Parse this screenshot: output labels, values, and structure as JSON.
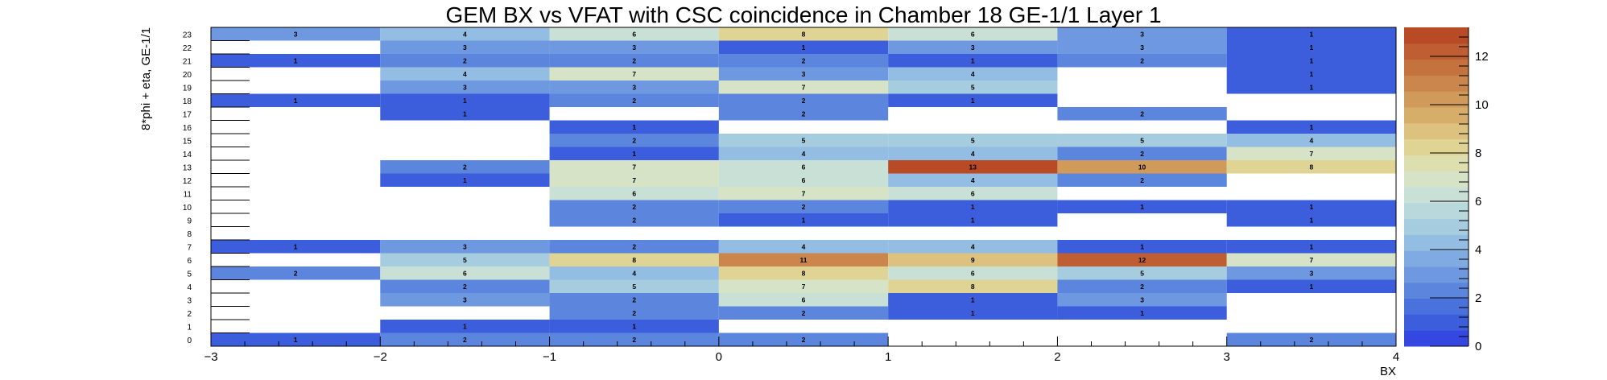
{
  "chart_data": {
    "type": "heatmap",
    "title": "GEM BX vs VFAT with CSC coincidence in Chamber 18 GE-1/1 Layer 1",
    "xlabel": "BX",
    "ylabel": "8*phi + eta, GE-1/1",
    "xlim": [
      -3,
      4
    ],
    "ylim": [
      0,
      24
    ],
    "zlim": [
      0,
      13.2
    ],
    "x_ticks": [
      -3,
      -2,
      -1,
      0,
      1,
      2,
      3,
      4
    ],
    "x_tick_labels": [
      "−3",
      "−2",
      "−1",
      "0",
      "1",
      "2",
      "3",
      "4"
    ],
    "y_ticks": [
      0,
      1,
      2,
      3,
      4,
      5,
      6,
      7,
      8,
      9,
      10,
      11,
      12,
      13,
      14,
      15,
      16,
      17,
      18,
      19,
      20,
      21,
      22,
      23
    ],
    "z_ticks": [
      0,
      2,
      4,
      6,
      8,
      10,
      12
    ],
    "x_bin_edges": [
      -3,
      -2,
      -1,
      0,
      1,
      2,
      3,
      4
    ],
    "cells": [
      {
        "x": -2.5,
        "y": 0,
        "v": 1
      },
      {
        "x": -1.5,
        "y": 0,
        "v": 2
      },
      {
        "x": -0.5,
        "y": 0,
        "v": 2
      },
      {
        "x": 0.5,
        "y": 0,
        "v": 2
      },
      {
        "x": 3.5,
        "y": 0,
        "v": 2
      },
      {
        "x": -1.5,
        "y": 1,
        "v": 1
      },
      {
        "x": -0.5,
        "y": 1,
        "v": 1
      },
      {
        "x": -0.5,
        "y": 2,
        "v": 2
      },
      {
        "x": 0.5,
        "y": 2,
        "v": 2
      },
      {
        "x": 1.5,
        "y": 2,
        "v": 1
      },
      {
        "x": 2.5,
        "y": 2,
        "v": 1
      },
      {
        "x": -1.5,
        "y": 3,
        "v": 3
      },
      {
        "x": -0.5,
        "y": 3,
        "v": 2
      },
      {
        "x": 0.5,
        "y": 3,
        "v": 6
      },
      {
        "x": 1.5,
        "y": 3,
        "v": 1
      },
      {
        "x": 2.5,
        "y": 3,
        "v": 3
      },
      {
        "x": -1.5,
        "y": 4,
        "v": 2
      },
      {
        "x": -0.5,
        "y": 4,
        "v": 5
      },
      {
        "x": 0.5,
        "y": 4,
        "v": 7
      },
      {
        "x": 1.5,
        "y": 4,
        "v": 8
      },
      {
        "x": 2.5,
        "y": 4,
        "v": 2
      },
      {
        "x": 3.5,
        "y": 4,
        "v": 1
      },
      {
        "x": -2.5,
        "y": 5,
        "v": 2
      },
      {
        "x": -1.5,
        "y": 5,
        "v": 6
      },
      {
        "x": -0.5,
        "y": 5,
        "v": 4
      },
      {
        "x": 0.5,
        "y": 5,
        "v": 8
      },
      {
        "x": 1.5,
        "y": 5,
        "v": 6
      },
      {
        "x": 2.5,
        "y": 5,
        "v": 5
      },
      {
        "x": 3.5,
        "y": 5,
        "v": 3
      },
      {
        "x": -1.5,
        "y": 6,
        "v": 5
      },
      {
        "x": -0.5,
        "y": 6,
        "v": 8
      },
      {
        "x": 0.5,
        "y": 6,
        "v": 11
      },
      {
        "x": 1.5,
        "y": 6,
        "v": 9
      },
      {
        "x": 2.5,
        "y": 6,
        "v": 12
      },
      {
        "x": 3.5,
        "y": 6,
        "v": 7
      },
      {
        "x": -2.5,
        "y": 7,
        "v": 1
      },
      {
        "x": -1.5,
        "y": 7,
        "v": 3
      },
      {
        "x": -0.5,
        "y": 7,
        "v": 2
      },
      {
        "x": 0.5,
        "y": 7,
        "v": 4
      },
      {
        "x": 1.5,
        "y": 7,
        "v": 4
      },
      {
        "x": 2.5,
        "y": 7,
        "v": 1
      },
      {
        "x": 3.5,
        "y": 7,
        "v": 1
      },
      {
        "x": -0.5,
        "y": 9,
        "v": 2
      },
      {
        "x": 0.5,
        "y": 9,
        "v": 1
      },
      {
        "x": 1.5,
        "y": 9,
        "v": 1
      },
      {
        "x": 3.5,
        "y": 9,
        "v": 1
      },
      {
        "x": -0.5,
        "y": 10,
        "v": 2
      },
      {
        "x": 0.5,
        "y": 10,
        "v": 2
      },
      {
        "x": 1.5,
        "y": 10,
        "v": 1
      },
      {
        "x": 2.5,
        "y": 10,
        "v": 1
      },
      {
        "x": 3.5,
        "y": 10,
        "v": 1
      },
      {
        "x": -0.5,
        "y": 11,
        "v": 6
      },
      {
        "x": 0.5,
        "y": 11,
        "v": 7
      },
      {
        "x": 1.5,
        "y": 11,
        "v": 6
      },
      {
        "x": -1.5,
        "y": 12,
        "v": 1
      },
      {
        "x": -0.5,
        "y": 12,
        "v": 7
      },
      {
        "x": 0.5,
        "y": 12,
        "v": 6
      },
      {
        "x": 1.5,
        "y": 12,
        "v": 4
      },
      {
        "x": 2.5,
        "y": 12,
        "v": 2
      },
      {
        "x": -1.5,
        "y": 13,
        "v": 2
      },
      {
        "x": -0.5,
        "y": 13,
        "v": 7
      },
      {
        "x": 0.5,
        "y": 13,
        "v": 6
      },
      {
        "x": 1.5,
        "y": 13,
        "v": 13
      },
      {
        "x": 2.5,
        "y": 13,
        "v": 10
      },
      {
        "x": 3.5,
        "y": 13,
        "v": 8
      },
      {
        "x": -0.5,
        "y": 14,
        "v": 1
      },
      {
        "x": 0.5,
        "y": 14,
        "v": 4
      },
      {
        "x": 1.5,
        "y": 14,
        "v": 4
      },
      {
        "x": 2.5,
        "y": 14,
        "v": 2
      },
      {
        "x": 3.5,
        "y": 14,
        "v": 7
      },
      {
        "x": -0.5,
        "y": 15,
        "v": 2
      },
      {
        "x": 0.5,
        "y": 15,
        "v": 5
      },
      {
        "x": 1.5,
        "y": 15,
        "v": 5
      },
      {
        "x": 2.5,
        "y": 15,
        "v": 5
      },
      {
        "x": 3.5,
        "y": 15,
        "v": 4
      },
      {
        "x": -0.5,
        "y": 16,
        "v": 1
      },
      {
        "x": 3.5,
        "y": 16,
        "v": 1
      },
      {
        "x": -1.5,
        "y": 17,
        "v": 1
      },
      {
        "x": 0.5,
        "y": 17,
        "v": 2
      },
      {
        "x": 2.5,
        "y": 17,
        "v": 2
      },
      {
        "x": -2.5,
        "y": 18,
        "v": 1
      },
      {
        "x": -1.5,
        "y": 18,
        "v": 1
      },
      {
        "x": -0.5,
        "y": 18,
        "v": 2
      },
      {
        "x": 0.5,
        "y": 18,
        "v": 2
      },
      {
        "x": 1.5,
        "y": 18,
        "v": 1
      },
      {
        "x": -1.5,
        "y": 19,
        "v": 3
      },
      {
        "x": -0.5,
        "y": 19,
        "v": 3
      },
      {
        "x": 0.5,
        "y": 19,
        "v": 7
      },
      {
        "x": 1.5,
        "y": 19,
        "v": 5
      },
      {
        "x": 3.5,
        "y": 19,
        "v": 1
      },
      {
        "x": -1.5,
        "y": 20,
        "v": 4
      },
      {
        "x": -0.5,
        "y": 20,
        "v": 7
      },
      {
        "x": 0.5,
        "y": 20,
        "v": 3
      },
      {
        "x": 1.5,
        "y": 20,
        "v": 4
      },
      {
        "x": 3.5,
        "y": 20,
        "v": 1
      },
      {
        "x": -2.5,
        "y": 21,
        "v": 1
      },
      {
        "x": -1.5,
        "y": 21,
        "v": 2
      },
      {
        "x": -0.5,
        "y": 21,
        "v": 2
      },
      {
        "x": 0.5,
        "y": 21,
        "v": 2
      },
      {
        "x": 1.5,
        "y": 21,
        "v": 1
      },
      {
        "x": 2.5,
        "y": 21,
        "v": 2
      },
      {
        "x": 3.5,
        "y": 21,
        "v": 1
      },
      {
        "x": -1.5,
        "y": 22,
        "v": 3
      },
      {
        "x": -0.5,
        "y": 22,
        "v": 3
      },
      {
        "x": 0.5,
        "y": 22,
        "v": 1
      },
      {
        "x": 1.5,
        "y": 22,
        "v": 3
      },
      {
        "x": 2.5,
        "y": 22,
        "v": 3
      },
      {
        "x": 3.5,
        "y": 22,
        "v": 1
      },
      {
        "x": -2.5,
        "y": 23,
        "v": 3
      },
      {
        "x": -1.5,
        "y": 23,
        "v": 4
      },
      {
        "x": -0.5,
        "y": 23,
        "v": 6
      },
      {
        "x": 0.5,
        "y": 23,
        "v": 8
      },
      {
        "x": 1.5,
        "y": 23,
        "v": 6
      },
      {
        "x": 2.5,
        "y": 23,
        "v": 3
      },
      {
        "x": 3.5,
        "y": 23,
        "v": 1
      }
    ],
    "colormap": [
      "#3447e0",
      "#3c5ddc",
      "#4a72dc",
      "#5c86de",
      "#6e98e0",
      "#80aae2",
      "#93bde2",
      "#a6ccdf",
      "#b8d8dc",
      "#c9e0d6",
      "#d6e3c6",
      "#dedfae",
      "#e0d494",
      "#dcc27e",
      "#d6ae6a",
      "#d09a5a",
      "#ca864c",
      "#c4723e",
      "#be5e32",
      "#b84a26"
    ],
    "legend": "colorbar-right",
    "grid": false
  }
}
